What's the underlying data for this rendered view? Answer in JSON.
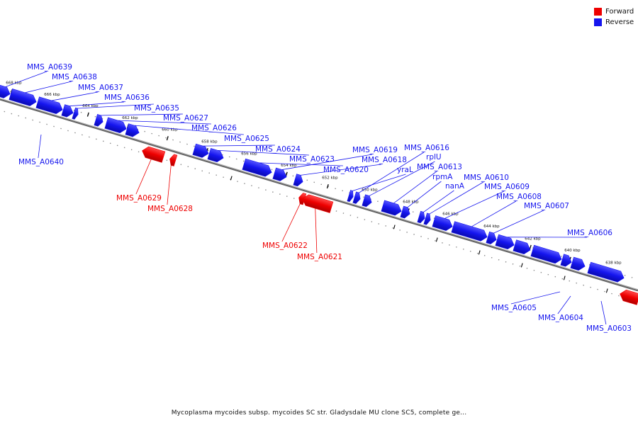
{
  "legend": {
    "forward_label": "Forward",
    "forward_color": "#ee0000",
    "reverse_label": "Reverse",
    "reverse_color": "#1515ee"
  },
  "caption": "Mycoplasma mycoides subsp. mycoides SC str. Gladysdale MU clone SC5, complete ge...",
  "ticks": [
    "668 kbp",
    "666 kbp",
    "664 kbp",
    "662 kbp",
    "660 kbp",
    "658 kbp",
    "656 kbp",
    "654 kbp",
    "652 kbp",
    "650 kbp",
    "648 kbp",
    "646 kbp",
    "644 kbp",
    "642 kbp",
    "640 kbp",
    "638 kbp"
  ],
  "genes": [
    {
      "label": "MMS_A0639",
      "strand": "reverse"
    },
    {
      "label": "MMS_A0638",
      "strand": "reverse"
    },
    {
      "label": "MMS_A0637",
      "strand": "reverse"
    },
    {
      "label": "MMS_A0636",
      "strand": "reverse"
    },
    {
      "label": "MMS_A0635",
      "strand": "reverse"
    },
    {
      "label": "MMS_A0627",
      "strand": "reverse"
    },
    {
      "label": "MMS_A0626",
      "strand": "reverse"
    },
    {
      "label": "MMS_A0625",
      "strand": "reverse"
    },
    {
      "label": "MMS_A0624",
      "strand": "reverse"
    },
    {
      "label": "MMS_A0623",
      "strand": "reverse"
    },
    {
      "label": "MMS_A0620",
      "strand": "reverse"
    },
    {
      "label": "MMS_A0619",
      "strand": "reverse"
    },
    {
      "label": "MMS_A0618",
      "strand": "reverse"
    },
    {
      "label": "yraL",
      "strand": "reverse"
    },
    {
      "label": "MMS_A0616",
      "strand": "reverse"
    },
    {
      "label": "rplU",
      "strand": "reverse"
    },
    {
      "label": "MMS_A0613",
      "strand": "reverse"
    },
    {
      "label": "rpmA",
      "strand": "reverse"
    },
    {
      "label": "nanA",
      "strand": "reverse"
    },
    {
      "label": "MMS_A0610",
      "strand": "reverse"
    },
    {
      "label": "MMS_A0609",
      "strand": "reverse"
    },
    {
      "label": "MMS_A0608",
      "strand": "reverse"
    },
    {
      "label": "MMS_A0607",
      "strand": "reverse"
    },
    {
      "label": "MMS_A0606",
      "strand": "reverse"
    },
    {
      "label": "MMS_A0640",
      "strand": "reverse"
    },
    {
      "label": "MMS_A0629",
      "strand": "forward"
    },
    {
      "label": "MMS_A0628",
      "strand": "forward"
    },
    {
      "label": "MMS_A0622",
      "strand": "forward"
    },
    {
      "label": "MMS_A0621",
      "strand": "forward"
    },
    {
      "label": "MMS_A0605",
      "strand": "reverse"
    },
    {
      "label": "MMS_A0604",
      "strand": "reverse"
    },
    {
      "label": "MMS_A0603",
      "strand": "reverse"
    }
  ]
}
